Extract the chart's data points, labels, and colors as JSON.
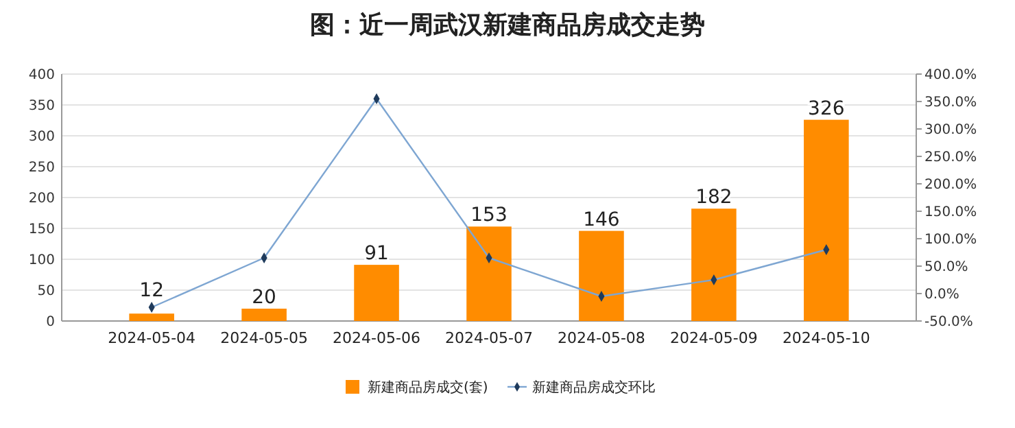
{
  "chart_data": {
    "type": "bar",
    "title": "图：近一周武汉新建商品房成交走势",
    "categories": [
      "2024-05-04",
      "2024-05-05",
      "2024-05-06",
      "2024-05-07",
      "2024-05-08",
      "2024-05-09",
      "2024-05-10"
    ],
    "series": [
      {
        "name": "新建商品房成交(套)",
        "color": "#ff8c00",
        "values": [
          12,
          20,
          91,
          153,
          146,
          182,
          326
        ],
        "value_labels": [
          "12",
          "20",
          "91",
          "153",
          "146",
          "182",
          "326"
        ]
      },
      {
        "name": "新建商品房成交环比",
        "type": "line",
        "axis": "y2",
        "color": "#7ea6d2",
        "marker": "diamond",
        "values": [
          -25,
          65,
          355,
          65,
          -5,
          25,
          80
        ]
      }
    ],
    "ylim": [
      0,
      400
    ],
    "yticks": [
      0,
      50,
      100,
      150,
      200,
      250,
      300,
      350,
      400
    ],
    "y2lim": [
      -50,
      400
    ],
    "y2ticks": [
      {
        "value": -50,
        "label": "-50.0%"
      },
      {
        "value": 0,
        "label": "0.0%"
      },
      {
        "value": 50,
        "label": "50.0%"
      },
      {
        "value": 100,
        "label": "100.0%"
      },
      {
        "value": 150,
        "label": "150.0%"
      },
      {
        "value": 200,
        "label": "200.0%"
      },
      {
        "value": 250,
        "label": "250.0%"
      },
      {
        "value": 300,
        "label": "300.0%"
      },
      {
        "value": 350,
        "label": "350.0%"
      },
      {
        "value": 400,
        "label": "400.0%"
      }
    ],
    "grid": "y",
    "legend": "bottom"
  }
}
